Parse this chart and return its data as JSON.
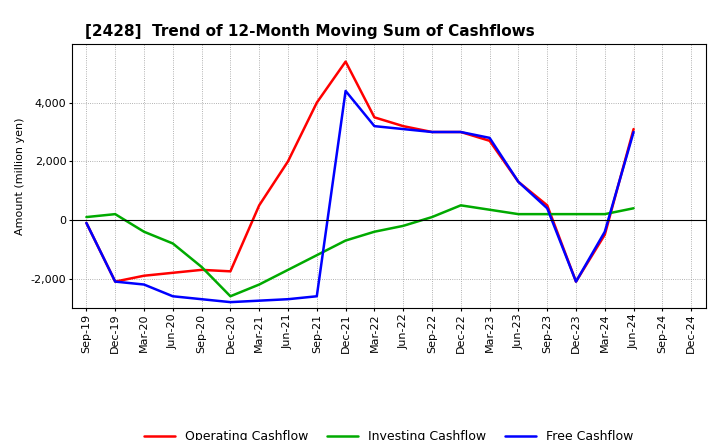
{
  "title": "[2428]  Trend of 12-Month Moving Sum of Cashflows",
  "ylabel": "Amount (million yen)",
  "x_labels": [
    "Sep-19",
    "Dec-19",
    "Mar-20",
    "Jun-20",
    "Sep-20",
    "Dec-20",
    "Mar-21",
    "Jun-21",
    "Sep-21",
    "Dec-21",
    "Mar-22",
    "Jun-22",
    "Sep-22",
    "Dec-22",
    "Mar-23",
    "Jun-23",
    "Sep-23",
    "Dec-23",
    "Mar-24",
    "Jun-24",
    "Sep-24",
    "Dec-24"
  ],
  "operating": [
    -100,
    -2100,
    -1900,
    -1800,
    -1700,
    -1750,
    500,
    2000,
    4000,
    5400,
    3500,
    3200,
    3000,
    3000,
    2700,
    1300,
    500,
    -2100,
    -500,
    3100,
    null,
    null
  ],
  "investing": [
    100,
    200,
    -400,
    -800,
    -1600,
    -2600,
    -2200,
    -1700,
    -1200,
    -700,
    -400,
    -200,
    100,
    500,
    350,
    200,
    200,
    200,
    200,
    400,
    null,
    null
  ],
  "free": [
    -100,
    -2100,
    -2200,
    -2600,
    -2700,
    -2800,
    -2750,
    -2700,
    -2600,
    4400,
    3200,
    3100,
    3000,
    3000,
    2800,
    1300,
    400,
    -2100,
    -400,
    3000,
    null,
    null
  ],
  "ylim": [
    -3000,
    6000
  ],
  "yticks": [
    -2000,
    0,
    2000,
    4000
  ],
  "operating_color": "#ff0000",
  "investing_color": "#00aa00",
  "free_color": "#0000ff",
  "line_width": 1.8,
  "background_color": "#ffffff",
  "grid_color": "#999999",
  "title_fontsize": 11,
  "axis_fontsize": 8,
  "legend_fontsize": 9
}
